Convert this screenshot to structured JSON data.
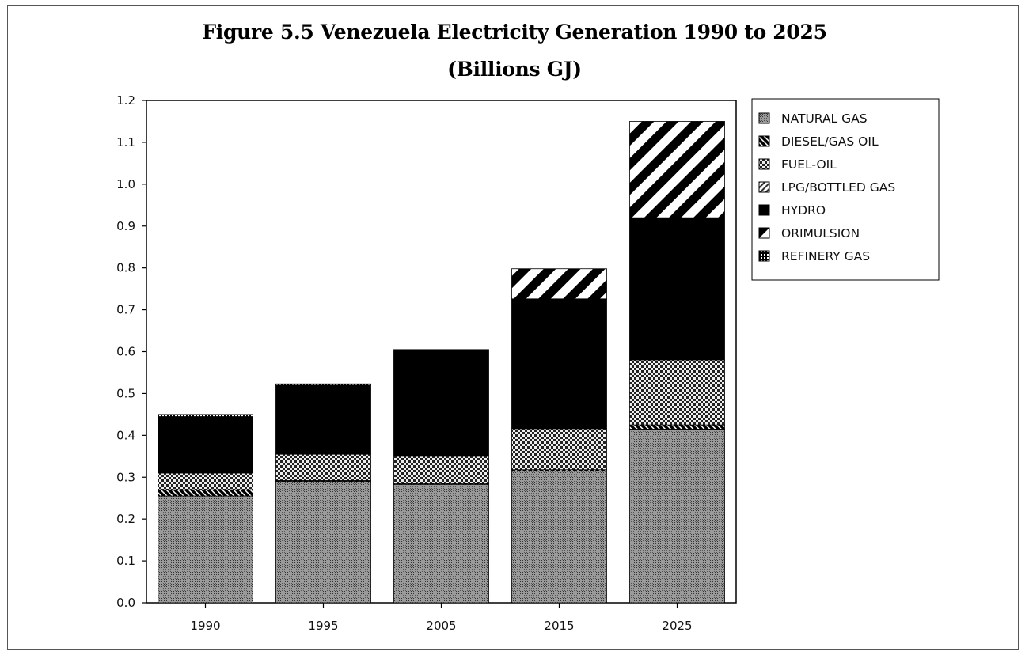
{
  "chart_data": {
    "type": "bar",
    "stacked": true,
    "title": "Figure 5.5 Venezuela Electricity Generation 1990 to 2025",
    "subtitle": "(Billions GJ)",
    "categories": [
      "1990",
      "1995",
      "2005",
      "2015",
      "2025"
    ],
    "ylim": [
      0,
      1.2
    ],
    "yticks": [
      "0.0",
      "0.1",
      "0.2",
      "0.3",
      "0.4",
      "0.5",
      "0.6",
      "0.7",
      "0.8",
      "0.9",
      "1.0",
      "1.1",
      "1.2"
    ],
    "legend_position": "right",
    "series": [
      {
        "name": "NATURAL GAS",
        "pattern": "dots",
        "values": [
          0.255,
          0.29,
          0.283,
          0.315,
          0.415
        ]
      },
      {
        "name": "DIESEL/GAS OIL",
        "pattern": "diag-dark",
        "values": [
          0.015,
          0.002,
          0.002,
          0.003,
          0.01
        ]
      },
      {
        "name": "FUEL-OIL",
        "pattern": "check",
        "values": [
          0.04,
          0.063,
          0.065,
          0.098,
          0.155
        ]
      },
      {
        "name": "LPG/BOTTLED GAS",
        "pattern": "diag-light",
        "values": [
          0.0,
          0.0,
          0.0,
          0.0,
          0.0
        ]
      },
      {
        "name": "HYDRO",
        "pattern": "solid",
        "values": [
          0.135,
          0.165,
          0.255,
          0.31,
          0.34
        ]
      },
      {
        "name": "ORIMULSION",
        "pattern": "stripes",
        "values": [
          0.0,
          0.0,
          0.0,
          0.072,
          0.23
        ]
      },
      {
        "name": "REFINERY GAS",
        "pattern": "grid",
        "values": [
          0.005,
          0.003,
          0.0,
          0.0,
          0.0
        ]
      }
    ]
  }
}
